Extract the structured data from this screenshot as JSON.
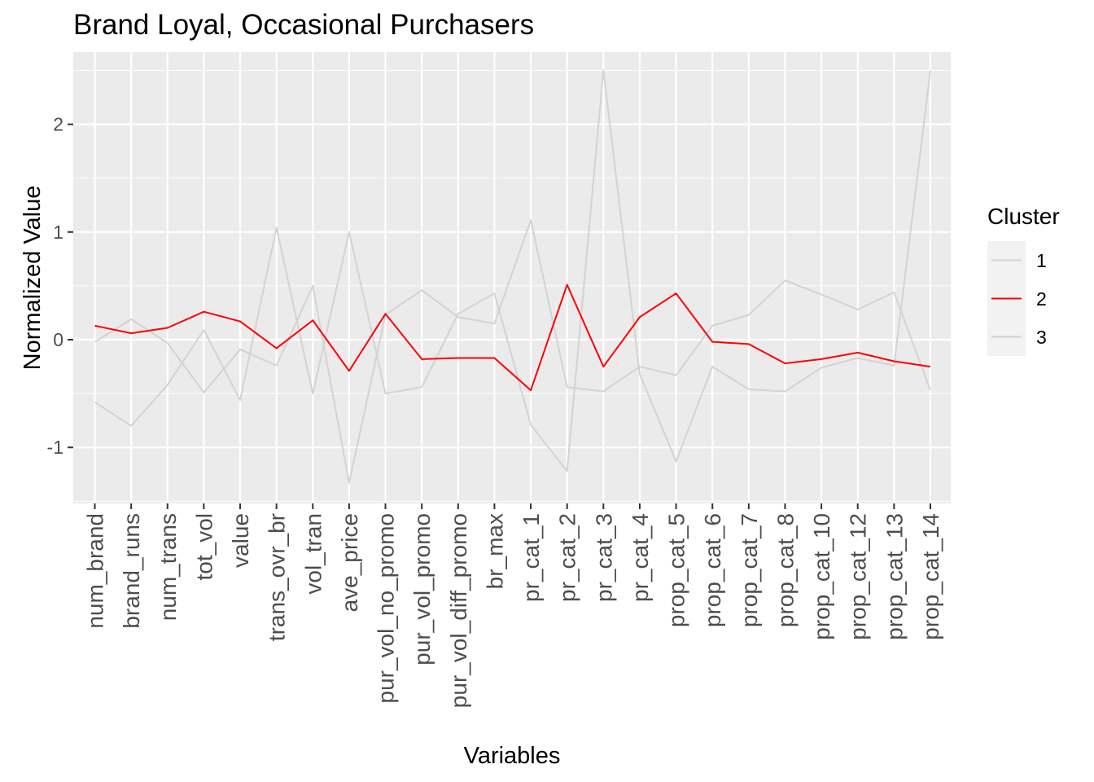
{
  "chart_data": {
    "type": "line",
    "title": "Brand Loyal, Occasional Purchasers",
    "xlabel": "Variables",
    "ylabel": "Normalized Value",
    "categories": [
      "num_brand",
      "brand_runs",
      "num_trans",
      "tot_vol",
      "value",
      "trans_ovr_br",
      "vol_tran",
      "ave_price",
      "pur_vol_no_promo",
      "pur_vol_promo",
      "pur_vol_diff_promo",
      "br_max",
      "pr_cat_1",
      "pr_cat_2",
      "pr_cat_3",
      "pr_cat_4",
      "prop_cat_5",
      "prop_cat_6",
      "prop_cat_7",
      "prop_cat_8",
      "prop_cat_10",
      "prop_cat_12",
      "prop_cat_13",
      "prop_cat_14"
    ],
    "ylim": [
      -1.52,
      2.67
    ],
    "yticks": [
      -1,
      0,
      1,
      2
    ],
    "yticklabels": [
      "-1",
      "0",
      "1",
      "2"
    ],
    "grid": true,
    "legend": {
      "title": "Cluster",
      "position": "right"
    },
    "series": [
      {
        "name": "1",
        "color": "#d3d3d3",
        "values": [
          -0.02,
          0.19,
          -0.03,
          -0.49,
          -0.09,
          -0.24,
          0.5,
          -1.33,
          0.23,
          0.46,
          0.21,
          0.15,
          1.11,
          -0.44,
          -0.48,
          -0.25,
          -0.33,
          0.13,
          0.23,
          0.55,
          0.42,
          0.28,
          0.44,
          -0.47
        ]
      },
      {
        "name": "2",
        "color": "#ff0000",
        "values": [
          0.13,
          0.06,
          0.11,
          0.26,
          0.17,
          -0.08,
          0.18,
          -0.29,
          0.24,
          -0.18,
          -0.17,
          -0.17,
          -0.47,
          0.51,
          -0.25,
          0.21,
          0.43,
          -0.02,
          -0.04,
          -0.22,
          -0.18,
          -0.12,
          -0.2,
          -0.25
        ]
      },
      {
        "name": "3",
        "color": "#d3d3d3",
        "values": [
          -0.58,
          -0.8,
          -0.42,
          0.09,
          -0.56,
          1.04,
          -0.5,
          1.0,
          -0.5,
          -0.44,
          0.24,
          0.43,
          -0.79,
          -1.22,
          2.5,
          -0.32,
          -1.13,
          -0.25,
          -0.46,
          -0.48,
          -0.26,
          -0.17,
          -0.24,
          2.5
        ]
      }
    ]
  }
}
